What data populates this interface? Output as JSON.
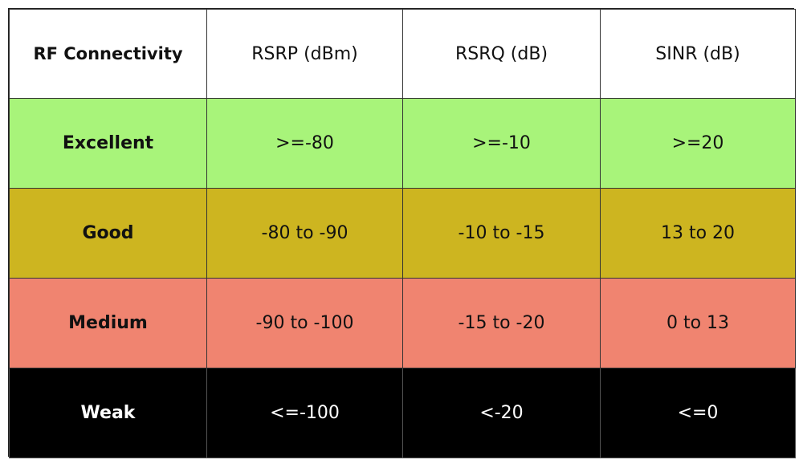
{
  "headers": [
    "RF Connectivity",
    "RSRP (dBm)",
    "RSRQ (dB)",
    "SINR (dB)"
  ],
  "rows": [
    {
      "label": "Excellent",
      "cells": [
        ">=-80",
        ">=-10",
        ">=20"
      ],
      "color": "#a8f47a"
    },
    {
      "label": "Good",
      "cells": [
        "-80 to -90",
        "-10 to -15",
        "13 to 20"
      ],
      "color": "#cdb520"
    },
    {
      "label": "Medium",
      "cells": [
        "-90 to -100",
        "-15 to -20",
        "0 to 13"
      ],
      "color": "#f08470"
    },
    {
      "label": "Weak",
      "cells": [
        "<=-100",
        "<-20",
        "<=0"
      ],
      "color": "#000000"
    }
  ]
}
